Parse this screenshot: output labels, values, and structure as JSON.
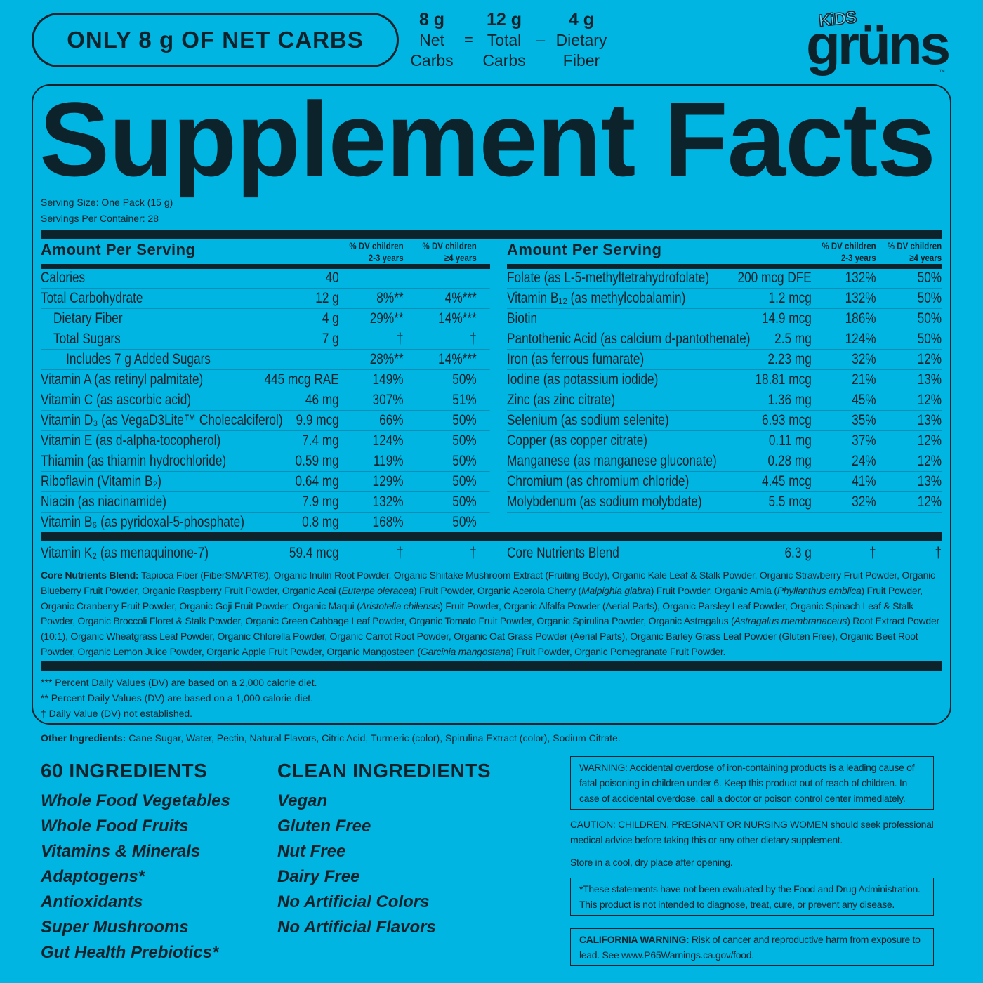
{
  "colors": {
    "background": "#00b5e2",
    "text": "#0c232b",
    "rule": "#078fb5"
  },
  "top": {
    "net_carbs_badge": "ONLY 8 g OF NET CARBS",
    "equation": [
      {
        "value": "8 g",
        "label1": "Net",
        "label2": "Carbs"
      },
      {
        "operator": "="
      },
      {
        "value": "12 g",
        "label1": "Total",
        "label2": "Carbs"
      },
      {
        "operator": "–"
      },
      {
        "value": "4 g",
        "label1": "Dietary",
        "label2": "Fiber"
      }
    ],
    "logo": {
      "kids": "KiDS",
      "brand": "grüns",
      "tm": "™"
    }
  },
  "facts": {
    "title": "Supplement Facts",
    "serving_size": "Serving Size: One Pack (15 g)",
    "servings_per_container": "Servings Per Container: 28",
    "amount_header": "Amount Per Serving",
    "dv1_header": [
      "% DV children",
      "2-3 years"
    ],
    "dv2_header": [
      "% DV children",
      "≥4 years"
    ],
    "left_rows": [
      {
        "name": "Calories",
        "amount": "40",
        "dv1": "",
        "dv2": "",
        "indent": 0
      },
      {
        "name": "Total Carbohydrate",
        "amount": "12 g",
        "dv1": "8%**",
        "dv2": "4%***",
        "indent": 0
      },
      {
        "name": "Dietary Fiber",
        "amount": "4 g",
        "dv1": "29%**",
        "dv2": "14%***",
        "indent": 1
      },
      {
        "name": "Total Sugars",
        "amount": "7 g",
        "dv1": "†",
        "dv2": "†",
        "indent": 1
      },
      {
        "name": "Includes 7 g Added Sugars",
        "amount": "",
        "dv1": "28%**",
        "dv2": "14%***",
        "indent": 2
      },
      {
        "name": "Vitamin A (as retinyl palmitate)",
        "amount": "445 mcg RAE",
        "dv1": "149%",
        "dv2": "50%",
        "indent": 0
      },
      {
        "name": "Vitamin C (as ascorbic acid)",
        "amount": "46 mg",
        "dv1": "307%",
        "dv2": "51%",
        "indent": 0
      },
      {
        "name": "Vitamin D₃ (as VegaD3Lite™ Cholecalciferol)",
        "amount": "9.9 mcg",
        "dv1": "66%",
        "dv2": "50%",
        "indent": 0
      },
      {
        "name": "Vitamin E (as d-alpha-tocopherol)",
        "amount": "7.4 mg",
        "dv1": "124%",
        "dv2": "50%",
        "indent": 0
      },
      {
        "name": "Thiamin (as thiamin hydrochloride)",
        "amount": "0.59 mg",
        "dv1": "119%",
        "dv2": "50%",
        "indent": 0
      },
      {
        "name": "Riboflavin (Vitamin B₂)",
        "amount": "0.64 mg",
        "dv1": "129%",
        "dv2": "50%",
        "indent": 0
      },
      {
        "name": "Niacin (as niacinamide)",
        "amount": "7.9 mg",
        "dv1": "132%",
        "dv2": "50%",
        "indent": 0
      },
      {
        "name": "Vitamin B₆ (as pyridoxal-5-phosphate)",
        "amount": "0.8 mg",
        "dv1": "168%",
        "dv2": "50%",
        "indent": 0
      }
    ],
    "right_rows": [
      {
        "name": "Folate (as L-5-methyltetrahydrofolate)",
        "amount": "200 mcg DFE",
        "dv1": "132%",
        "dv2": "50%"
      },
      {
        "name": "Vitamin B₁₂ (as methylcobalamin)",
        "amount": "1.2 mcg",
        "dv1": "132%",
        "dv2": "50%"
      },
      {
        "name": "Biotin",
        "amount": "14.9 mcg",
        "dv1": "186%",
        "dv2": "50%"
      },
      {
        "name": "Pantothenic Acid (as calcium d-pantothenate)",
        "amount": "2.5 mg",
        "dv1": "124%",
        "dv2": "50%"
      },
      {
        "name": "Iron (as ferrous fumarate)",
        "amount": "2.23 mg",
        "dv1": "32%",
        "dv2": "12%"
      },
      {
        "name": "Iodine (as potassium iodide)",
        "amount": "18.81 mcg",
        "dv1": "21%",
        "dv2": "13%"
      },
      {
        "name": "Zinc (as zinc citrate)",
        "amount": "1.36 mg",
        "dv1": "45%",
        "dv2": "12%"
      },
      {
        "name": "Selenium (as sodium selenite)",
        "amount": "6.93 mcg",
        "dv1": "35%",
        "dv2": "13%"
      },
      {
        "name": "Copper (as copper citrate)",
        "amount": "0.11 mg",
        "dv1": "37%",
        "dv2": "12%"
      },
      {
        "name": "Manganese (as manganese gluconate)",
        "amount": "0.28 mg",
        "dv1": "24%",
        "dv2": "12%"
      },
      {
        "name": "Chromium (as chromium chloride)",
        "amount": "4.45 mcg",
        "dv1": "41%",
        "dv2": "13%"
      },
      {
        "name": "Molybdenum (as sodium molybdate)",
        "amount": "5.5 mcg",
        "dv1": "32%",
        "dv2": "12%"
      },
      {
        "name": "",
        "amount": "",
        "dv1": "",
        "dv2": ""
      }
    ],
    "left_bottom": {
      "name": "Vitamin K₂ (as menaquinone-7)",
      "amount": "59.4 mcg",
      "dv1": "†",
      "dv2": "†"
    },
    "right_bottom": {
      "name": "Core Nutrients Blend",
      "amount": "6.3 g",
      "dv1": "†",
      "dv2": "†"
    },
    "blend": [
      {
        "t": "Core Nutrients Blend:",
        "b": true
      },
      {
        "t": " Tapioca Fiber (FiberSMART®), Organic Inulin Root Powder, Organic Shiitake Mushroom Extract (Fruiting Body), Organic Kale Leaf & Stalk Powder, Organic Strawberry Fruit Powder, Organic Blueberry Fruit Powder, Organic Raspberry Fruit Powder, Organic Acai ("
      },
      {
        "t": "Euterpe oleracea",
        "i": true
      },
      {
        "t": ") Fruit Powder, Organic Acerola Cherry ("
      },
      {
        "t": "Malpighia glabra",
        "i": true
      },
      {
        "t": ") Fruit Powder, Organic Amla ("
      },
      {
        "t": "Phyllanthus emblica",
        "i": true
      },
      {
        "t": ") Fruit Powder, Organic Cranberry Fruit Powder, Organic Goji Fruit Powder, Organic Maqui ("
      },
      {
        "t": "Aristotelia chilensis",
        "i": true
      },
      {
        "t": ") Fruit Powder, Organic Alfalfa Powder (Aerial Parts), Organic Parsley Leaf Powder, Organic Spinach Leaf & Stalk Powder, Organic Broccoli Floret & Stalk Powder, Organic Green Cabbage Leaf Powder, Organic Tomato Fruit Powder, Organic Spirulina Powder, Organic Astragalus ("
      },
      {
        "t": "Astragalus membranaceus",
        "i": true
      },
      {
        "t": ") Root Extract Powder (10:1), Organic Wheatgrass Leaf Powder, Organic Chlorella Powder, Organic Carrot Root Powder, Organic Oat Grass Powder (Aerial Parts), Organic Barley Grass Leaf Powder (Gluten Free), Organic Beet Root Powder, Organic Lemon Juice Powder, Organic Apple Fruit Powder, Organic Mangosteen ("
      },
      {
        "t": "Garcinia mangostana",
        "i": true
      },
      {
        "t": ") Fruit Powder, Organic Pomegranate Fruit Powder."
      }
    ],
    "footnotes": [
      "*** Percent Daily Values (DV) are based on a 2,000 calorie diet.",
      "** Percent Daily Values (DV) are based on a 1,000 calorie diet.",
      "† Daily Value (DV) not established."
    ]
  },
  "other_ingredients": {
    "label": "Other Ingredients:",
    "text": " Cane Sugar, Water, Pectin, Natural Flavors, Citric Acid, Turmeric (color), Spirulina Extract (color), Sodium Citrate."
  },
  "ingredients_list": {
    "heading": "60 INGREDIENTS",
    "items": [
      "Whole Food Vegetables",
      "Whole Food Fruits",
      "Vitamins & Minerals",
      "Adaptogens*",
      "Antioxidants",
      "Super Mushrooms",
      "Gut Health Prebiotics*"
    ]
  },
  "clean_list": {
    "heading": "CLEAN INGREDIENTS",
    "items": [
      "Vegan",
      "Gluten Free",
      "Nut Free",
      "Dairy Free",
      "No Artificial Colors",
      "No Artificial Flavors"
    ]
  },
  "warnings": {
    "iron": "WARNING: Accidental overdose of iron-containing products is a leading cause of fatal poisoning in children under 6. Keep this product out of reach of children. In case of accidental overdose, call a doctor or poison control center immediately.",
    "caution": "CAUTION: CHILDREN, PREGNANT OR NURSING WOMEN should seek professional medical advice before taking this or any other dietary supplement.",
    "storage": "Store in a cool, dry place after opening.",
    "fda": "*These statements have not been evaluated by the Food and Drug Administration. This product is not intended to diagnose, treat, cure, or prevent any disease.",
    "california_label": "CALIFORNIA WARNING:",
    "california": " Risk of cancer and reproductive harm from exposure to lead. See www.P65Warnings.ca.gov/food."
  }
}
